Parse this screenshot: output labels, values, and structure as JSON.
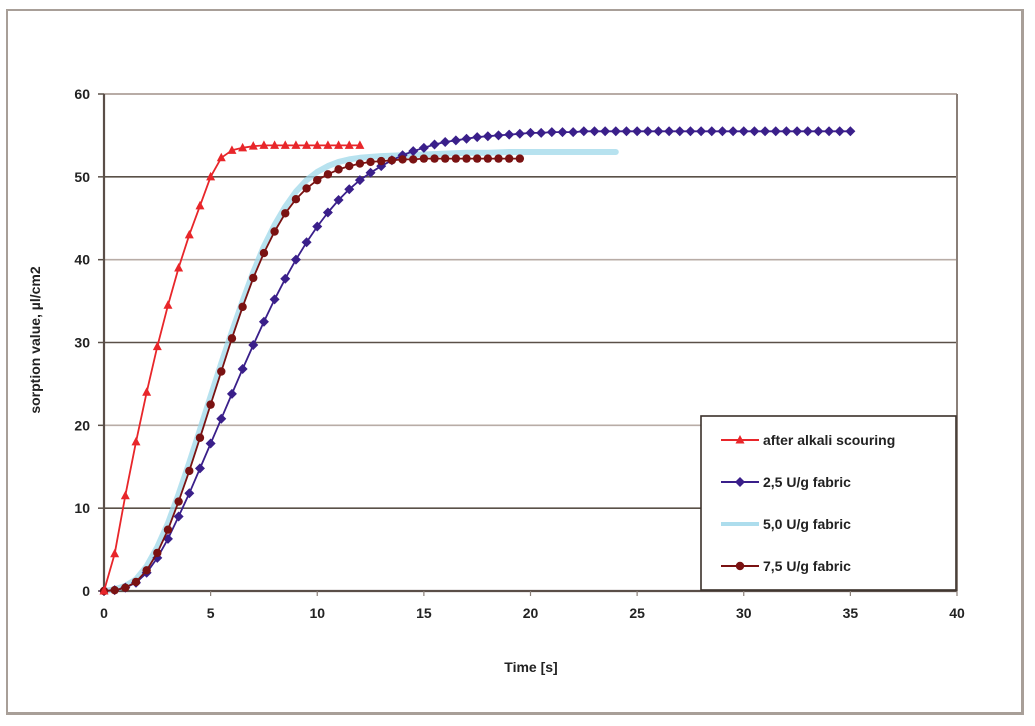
{
  "chart_data": {
    "type": "line",
    "title": "",
    "xlabel": "Time [s]",
    "ylabel": "sorption value, µl/cm2",
    "xlim": [
      0,
      40
    ],
    "ylim": [
      0,
      60
    ],
    "xticks": [
      0,
      5,
      10,
      15,
      20,
      25,
      30,
      35,
      40
    ],
    "yticks": [
      0,
      10,
      20,
      30,
      40,
      50,
      60
    ],
    "grid": {
      "horizontal": true,
      "vertical": false
    },
    "legend_position": "lower right (inside plot)",
    "series": [
      {
        "name": "after alkali scouring",
        "color": "#e8262a",
        "marker": "triangle",
        "x": [
          0,
          0.5,
          1,
          1.5,
          2,
          2.5,
          3,
          3.5,
          4,
          4.5,
          5,
          5.5,
          6,
          6.5,
          7,
          7.5,
          8,
          8.5,
          9,
          9.5,
          10,
          10.5,
          11,
          11.5,
          12
        ],
        "y": [
          0,
          4.5,
          11.5,
          18,
          24,
          29.5,
          34.5,
          39,
          43,
          46.5,
          50,
          52.3,
          53.2,
          53.5,
          53.7,
          53.8,
          53.8,
          53.8,
          53.8,
          53.8,
          53.8,
          53.8,
          53.8,
          53.8,
          53.8
        ]
      },
      {
        "name": "2,5 U/g fabric",
        "color": "#3a1f8a",
        "marker": "diamond",
        "x": [
          0,
          0.5,
          1,
          1.5,
          2,
          2.5,
          3,
          3.5,
          4,
          4.5,
          5,
          5.5,
          6,
          6.5,
          7,
          7.5,
          8,
          8.5,
          9,
          9.5,
          10,
          10.5,
          11,
          11.5,
          12,
          12.5,
          13,
          13.5,
          14,
          14.5,
          15,
          15.5,
          16,
          16.5,
          17,
          17.5,
          18,
          18.5,
          19,
          19.5,
          20,
          20.5,
          21,
          21.5,
          22,
          22.5,
          23,
          23.5,
          24,
          24.5,
          25,
          25.5,
          26,
          26.5,
          27,
          27.5,
          28,
          28.5,
          29,
          29.5,
          30,
          30.5,
          31,
          31.5,
          32,
          32.5,
          33,
          33.5,
          34,
          34.5,
          35
        ],
        "y": [
          0,
          0.1,
          0.4,
          1,
          2.2,
          4,
          6.3,
          9,
          11.8,
          14.8,
          17.8,
          20.8,
          23.8,
          26.8,
          29.7,
          32.5,
          35.2,
          37.7,
          40,
          42.1,
          44,
          45.7,
          47.2,
          48.5,
          49.6,
          50.5,
          51.3,
          52,
          52.6,
          53.1,
          53.5,
          53.9,
          54.2,
          54.4,
          54.6,
          54.8,
          54.9,
          55,
          55.1,
          55.2,
          55.3,
          55.3,
          55.4,
          55.4,
          55.4,
          55.5,
          55.5,
          55.5,
          55.5,
          55.5,
          55.5,
          55.5,
          55.5,
          55.5,
          55.5,
          55.5,
          55.5,
          55.5,
          55.5,
          55.5,
          55.5,
          55.5,
          55.5,
          55.5,
          55.5,
          55.5,
          55.5,
          55.5,
          55.5,
          55.5,
          55.5
        ]
      },
      {
        "name": "5,0 U/g fabric",
        "color": "#9fd8ea",
        "marker": "none",
        "x": [
          0,
          0.5,
          1,
          1.5,
          2,
          2.5,
          3,
          3.5,
          4,
          4.5,
          5,
          5.5,
          6,
          6.5,
          7,
          7.5,
          8,
          8.5,
          9,
          9.5,
          10,
          10.5,
          11,
          11.5,
          12,
          13,
          14,
          15,
          16,
          17,
          18,
          19,
          20,
          21,
          22,
          23,
          24
        ],
        "y": [
          0,
          0.2,
          0.6,
          1.4,
          3,
          5.3,
          8.2,
          11.7,
          15.5,
          19.5,
          23.5,
          27.5,
          31.3,
          35,
          38.5,
          41.6,
          44.2,
          46.4,
          48.2,
          49.6,
          50.6,
          51.3,
          51.8,
          52.1,
          52.3,
          52.5,
          52.6,
          52.7,
          52.8,
          52.9,
          52.9,
          53,
          53,
          53,
          53,
          53,
          53
        ]
      },
      {
        "name": "7,5 U/g fabric",
        "color": "#7a1212",
        "marker": "circle",
        "x": [
          0,
          0.5,
          1,
          1.5,
          2,
          2.5,
          3,
          3.5,
          4,
          4.5,
          5,
          5.5,
          6,
          6.5,
          7,
          7.5,
          8,
          8.5,
          9,
          9.5,
          10,
          10.5,
          11,
          11.5,
          12,
          12.5,
          13,
          13.5,
          14,
          14.5,
          15,
          15.5,
          16,
          16.5,
          17,
          17.5,
          18,
          18.5,
          19,
          19.5
        ],
        "y": [
          0,
          0.1,
          0.4,
          1.1,
          2.5,
          4.6,
          7.4,
          10.8,
          14.5,
          18.5,
          22.5,
          26.5,
          30.5,
          34.3,
          37.8,
          40.8,
          43.4,
          45.6,
          47.3,
          48.6,
          49.6,
          50.3,
          50.9,
          51.3,
          51.6,
          51.8,
          51.9,
          52,
          52.1,
          52.1,
          52.2,
          52.2,
          52.2,
          52.2,
          52.2,
          52.2,
          52.2,
          52.2,
          52.2,
          52.2
        ]
      }
    ]
  }
}
